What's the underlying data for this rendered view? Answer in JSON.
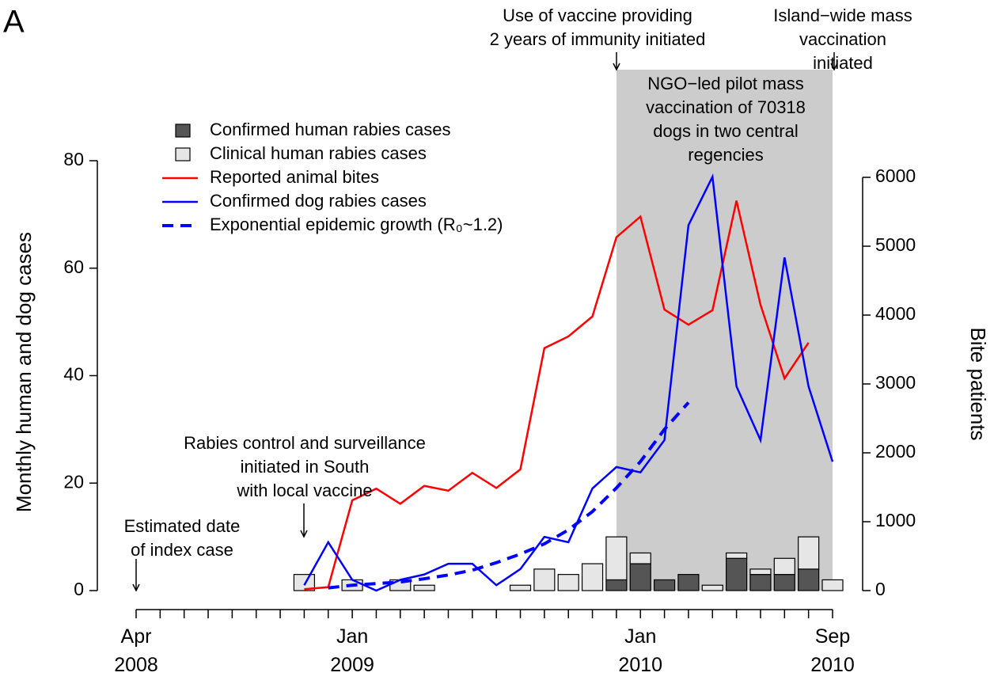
{
  "chart_data": {
    "type": "bar",
    "panel_label": "A",
    "y_label": "Monthly human and dog cases",
    "y2_label": "Bite patients",
    "categories": [
      "Apr\n2008",
      null,
      null,
      null,
      null,
      null,
      null,
      null,
      null,
      "Jan\n2009",
      null,
      null,
      null,
      null,
      null,
      null,
      null,
      null,
      null,
      null,
      null,
      "Jan\n2010",
      null,
      null,
      null,
      null,
      null,
      null,
      null,
      "Sep\n2010"
    ],
    "ylim": [
      0,
      80
    ],
    "yticks": [
      0,
      20,
      40,
      60,
      80
    ],
    "y2lim": [
      0,
      6000
    ],
    "y2ticks": [
      0,
      1000,
      2000,
      3000,
      4000,
      5000,
      6000
    ],
    "series": [
      {
        "name": "Confirmed human rabies cases",
        "type": "bar",
        "color": "#555555",
        "values": [
          null,
          null,
          null,
          null,
          null,
          null,
          null,
          0,
          0,
          0,
          0,
          0,
          0,
          0,
          0,
          0,
          0,
          0,
          0,
          0,
          2,
          5,
          2,
          3,
          0,
          6,
          3,
          3,
          4,
          0
        ]
      },
      {
        "name": "Clinical human rabies cases",
        "type": "bar",
        "color": "#e6e6e6",
        "values": [
          null,
          null,
          null,
          null,
          null,
          null,
          null,
          3,
          0,
          2,
          0,
          2,
          1,
          0,
          0,
          0,
          1,
          4,
          3,
          5,
          8,
          2,
          0,
          0,
          1,
          1,
          1,
          3,
          6,
          2
        ]
      },
      {
        "name": "Reported animal bites",
        "type": "line",
        "axis": "y2",
        "color": "#ff0000",
        "values": [
          null,
          null,
          null,
          null,
          null,
          null,
          null,
          20,
          50,
          1310,
          1480,
          1260,
          1520,
          1450,
          1710,
          1490,
          1760,
          3520,
          3690,
          3980,
          5130,
          5430,
          4080,
          3860,
          4070,
          5660,
          4150,
          3080,
          3600,
          null
        ]
      },
      {
        "name": "Confirmed dog rabies cases",
        "type": "line",
        "color": "#0000ff",
        "values": [
          null,
          null,
          null,
          null,
          null,
          null,
          null,
          1,
          9,
          2,
          0,
          2,
          3,
          5,
          5,
          1,
          4,
          10,
          9,
          19,
          23,
          22,
          28,
          68,
          77,
          38,
          28,
          62,
          38,
          24
        ]
      },
      {
        "name": "Exponential epidemic growth (R₀~1.2)",
        "type": "line",
        "linestyle": "dashed",
        "color": "#0000ff",
        "values": [
          null,
          null,
          null,
          null,
          null,
          null,
          null,
          null,
          0.5,
          1.0,
          1.3,
          1.6,
          2.2,
          2.9,
          3.8,
          5.2,
          6.8,
          8.7,
          11.3,
          14.7,
          19.1,
          24,
          30,
          35,
          null,
          null,
          null,
          null,
          null,
          null
        ]
      }
    ],
    "annotations": [
      "Use of vaccine providing\n2 years of immunity initiated",
      "Island−wide mass\nvaccination initiated",
      "NGO−led pilot mass\nvaccination of 70318\ndogs in two central\nregencies",
      "Rabies control and surveillance\ninitiated in South\nwith local vaccine",
      "Estimated date\nof index case"
    ]
  }
}
